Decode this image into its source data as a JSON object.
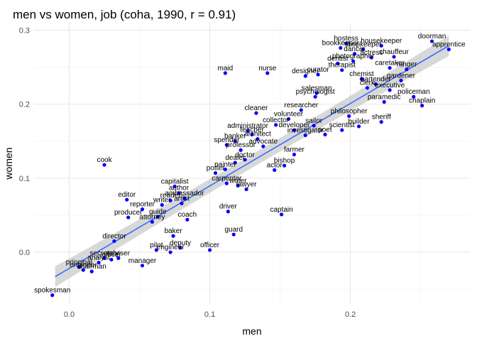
{
  "chart_data": {
    "type": "scatter",
    "title": "men vs women, job (coha, 1990, r = 0.91)",
    "xlabel": "men",
    "ylabel": "women",
    "xlim": [
      -0.025,
      0.285
    ],
    "ylim": [
      -0.07,
      0.31
    ],
    "x_ticks": [
      {
        "value": 0.0,
        "label": "0.0"
      },
      {
        "value": 0.1,
        "label": "0.1"
      },
      {
        "value": 0.2,
        "label": "0.2"
      }
    ],
    "y_ticks": [
      {
        "value": 0.0,
        "label": "0.0"
      },
      {
        "value": 0.1,
        "label": "0.1"
      },
      {
        "value": 0.2,
        "label": "0.2"
      },
      {
        "value": 0.3,
        "label": "0.3"
      }
    ],
    "grid": true,
    "point_color": "#0000ff",
    "fit_color": "#3366ff",
    "band_color": "#bebebe",
    "fit": {
      "x0": -0.01,
      "y0": -0.033,
      "x1": 0.27,
      "y1": 0.279,
      "band_lo": 0.009,
      "band_hi": 0.014
    },
    "points": [
      {
        "label": "spokesman",
        "x": -0.012,
        "y": -0.058
      },
      {
        "label": "principal",
        "x": 0.007,
        "y": -0.02
      },
      {
        "label": "engineer",
        "x": 0.01,
        "y": -0.024
      },
      {
        "label": "chairman",
        "x": 0.016,
        "y": -0.026
      },
      {
        "label": "analyst",
        "x": 0.021,
        "y": -0.014
      },
      {
        "label": "secretary",
        "x": 0.025,
        "y": -0.008
      },
      {
        "label": "officer",
        "x": 0.03,
        "y": -0.01
      },
      {
        "label": "adviser",
        "x": 0.035,
        "y": -0.008
      },
      {
        "label": "director",
        "x": 0.032,
        "y": 0.015
      },
      {
        "label": "producer",
        "x": 0.042,
        "y": 0.047
      },
      {
        "label": "editor",
        "x": 0.041,
        "y": 0.071
      },
      {
        "label": "cook",
        "x": 0.025,
        "y": 0.118
      },
      {
        "label": "manager",
        "x": 0.052,
        "y": -0.018
      },
      {
        "label": "reporter",
        "x": 0.052,
        "y": 0.058
      },
      {
        "label": "guide",
        "x": 0.063,
        "y": 0.048
      },
      {
        "label": "attorney",
        "x": 0.059,
        "y": 0.041
      },
      {
        "label": "writer",
        "x": 0.066,
        "y": 0.064
      },
      {
        "label": "pilot",
        "x": 0.062,
        "y": 0.003
      },
      {
        "label": "engineer",
        "x": 0.072,
        "y": 0.0
      },
      {
        "label": "baker",
        "x": 0.074,
        "y": 0.022
      },
      {
        "label": "deputy",
        "x": 0.079,
        "y": 0.006
      },
      {
        "label": "coach",
        "x": 0.084,
        "y": 0.044
      },
      {
        "label": "capitalist",
        "x": 0.075,
        "y": 0.089
      },
      {
        "label": "author",
        "x": 0.078,
        "y": 0.08
      },
      {
        "label": "ambassador",
        "x": 0.082,
        "y": 0.073
      },
      {
        "label": "reader",
        "x": 0.072,
        "y": 0.07
      },
      {
        "label": "artist",
        "x": 0.08,
        "y": 0.066
      },
      {
        "label": "officer",
        "x": 0.1,
        "y": 0.003
      },
      {
        "label": "driver",
        "x": 0.113,
        "y": 0.055
      },
      {
        "label": "guard",
        "x": 0.117,
        "y": 0.024
      },
      {
        "label": "potter",
        "x": 0.104,
        "y": 0.107
      },
      {
        "label": "painter",
        "x": 0.111,
        "y": 0.112
      },
      {
        "label": "carpenter",
        "x": 0.112,
        "y": 0.093
      },
      {
        "label": "writer",
        "x": 0.12,
        "y": 0.09
      },
      {
        "label": "lawyer",
        "x": 0.126,
        "y": 0.085
      },
      {
        "label": "dealer",
        "x": 0.118,
        "y": 0.121
      },
      {
        "label": "doctor",
        "x": 0.125,
        "y": 0.125
      },
      {
        "label": "spender",
        "x": 0.112,
        "y": 0.145
      },
      {
        "label": "banker",
        "x": 0.118,
        "y": 0.15
      },
      {
        "label": "professor",
        "x": 0.122,
        "y": 0.138
      },
      {
        "label": "administrator",
        "x": 0.127,
        "y": 0.164
      },
      {
        "label": "teacher",
        "x": 0.13,
        "y": 0.159
      },
      {
        "label": "architect",
        "x": 0.134,
        "y": 0.153
      },
      {
        "label": "advocate",
        "x": 0.138,
        "y": 0.143
      },
      {
        "label": "actor",
        "x": 0.146,
        "y": 0.111
      },
      {
        "label": "bishop",
        "x": 0.153,
        "y": 0.117
      },
      {
        "label": "farmer",
        "x": 0.16,
        "y": 0.132
      },
      {
        "label": "captain",
        "x": 0.151,
        "y": 0.051
      },
      {
        "label": "maid",
        "x": 0.111,
        "y": 0.242
      },
      {
        "label": "nurse",
        "x": 0.141,
        "y": 0.242
      },
      {
        "label": "cleaner",
        "x": 0.133,
        "y": 0.188
      },
      {
        "label": "collector",
        "x": 0.147,
        "y": 0.172
      },
      {
        "label": "volunteer",
        "x": 0.156,
        "y": 0.18
      },
      {
        "label": "researcher",
        "x": 0.165,
        "y": 0.192
      },
      {
        "label": "developer",
        "x": 0.16,
        "y": 0.165
      },
      {
        "label": "investigator",
        "x": 0.168,
        "y": 0.158
      },
      {
        "label": "sailor",
        "x": 0.174,
        "y": 0.171
      },
      {
        "label": "poet",
        "x": 0.182,
        "y": 0.159
      },
      {
        "label": "scientist",
        "x": 0.194,
        "y": 0.165
      },
      {
        "label": "builder",
        "x": 0.206,
        "y": 0.17
      },
      {
        "label": "sheriff",
        "x": 0.222,
        "y": 0.176
      },
      {
        "label": "philosopher",
        "x": 0.199,
        "y": 0.184
      },
      {
        "label": "psychologist",
        "x": 0.175,
        "y": 0.21
      },
      {
        "label": "salesman",
        "x": 0.176,
        "y": 0.215
      },
      {
        "label": "designer",
        "x": 0.168,
        "y": 0.238
      },
      {
        "label": "curator",
        "x": 0.177,
        "y": 0.24
      },
      {
        "label": "therapist",
        "x": 0.194,
        "y": 0.246
      },
      {
        "label": "chemist",
        "x": 0.208,
        "y": 0.234
      },
      {
        "label": "dentist",
        "x": 0.191,
        "y": 0.255
      },
      {
        "label": "photographer",
        "x": 0.202,
        "y": 0.258
      },
      {
        "label": "hostess",
        "x": 0.197,
        "y": 0.282
      },
      {
        "label": "bookkeeper",
        "x": 0.193,
        "y": 0.276
      },
      {
        "label": "dancer",
        "x": 0.203,
        "y": 0.268
      },
      {
        "label": "shopkeeper",
        "x": 0.209,
        "y": 0.274
      },
      {
        "label": "housekeeper",
        "x": 0.222,
        "y": 0.279
      },
      {
        "label": "actress",
        "x": 0.215,
        "y": 0.263
      },
      {
        "label": "chauffeur",
        "x": 0.231,
        "y": 0.264
      },
      {
        "label": "caretaker",
        "x": 0.228,
        "y": 0.249
      },
      {
        "label": "ranger",
        "x": 0.24,
        "y": 0.247
      },
      {
        "label": "gardener",
        "x": 0.236,
        "y": 0.232
      },
      {
        "label": "bartender",
        "x": 0.218,
        "y": 0.227
      },
      {
        "label": "executive",
        "x": 0.228,
        "y": 0.219
      },
      {
        "label": "clerk",
        "x": 0.212,
        "y": 0.222
      },
      {
        "label": "policeman",
        "x": 0.245,
        "y": 0.21
      },
      {
        "label": "chaplain",
        "x": 0.251,
        "y": 0.198
      },
      {
        "label": "paramedic",
        "x": 0.224,
        "y": 0.203
      },
      {
        "label": "doorman",
        "x": 0.258,
        "y": 0.285
      },
      {
        "label": "apprentice",
        "x": 0.27,
        "y": 0.274
      }
    ]
  }
}
